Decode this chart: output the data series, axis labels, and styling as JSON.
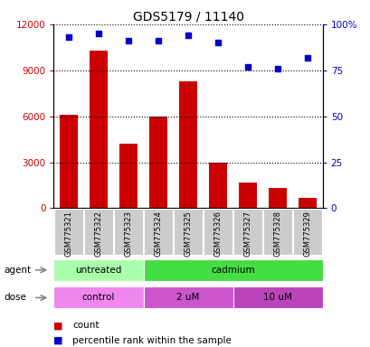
{
  "title": "GDS5179 / 11140",
  "categories": [
    "GSM775321",
    "GSM775322",
    "GSM775323",
    "GSM775324",
    "GSM775325",
    "GSM775326",
    "GSM775327",
    "GSM775328",
    "GSM775329"
  ],
  "bar_values": [
    6100,
    10300,
    4200,
    6000,
    8300,
    3000,
    1700,
    1300,
    650
  ],
  "scatter_values": [
    93,
    95,
    91,
    91,
    94,
    90,
    77,
    76,
    82
  ],
  "bar_color": "#cc0000",
  "scatter_color": "#0000cc",
  "left_ylim": [
    0,
    12000
  ],
  "left_yticks": [
    0,
    3000,
    6000,
    9000,
    12000
  ],
  "right_ylim": [
    0,
    100
  ],
  "right_yticks": [
    0,
    25,
    50,
    75,
    100
  ],
  "right_yticklabels": [
    "0",
    "25",
    "50",
    "75",
    "100%"
  ],
  "agent_labels": [
    {
      "text": "untreated",
      "start": 0,
      "end": 2,
      "color": "#aaffaa"
    },
    {
      "text": "cadmium",
      "start": 3,
      "end": 8,
      "color": "#44dd44"
    }
  ],
  "dose_labels": [
    {
      "text": "control",
      "start": 0,
      "end": 2,
      "color": "#ee88ee"
    },
    {
      "text": "2 uM",
      "start": 3,
      "end": 5,
      "color": "#cc55cc"
    },
    {
      "text": "10 uM",
      "start": 6,
      "end": 8,
      "color": "#bb44bb"
    }
  ],
  "legend_count_color": "#cc0000",
  "legend_scatter_color": "#0000cc",
  "background_color": "#ffffff",
  "tick_label_color_left": "#cc0000",
  "tick_label_color_right": "#0000cc",
  "grid_color": "#000000",
  "xticklabel_bg": "#cccccc"
}
